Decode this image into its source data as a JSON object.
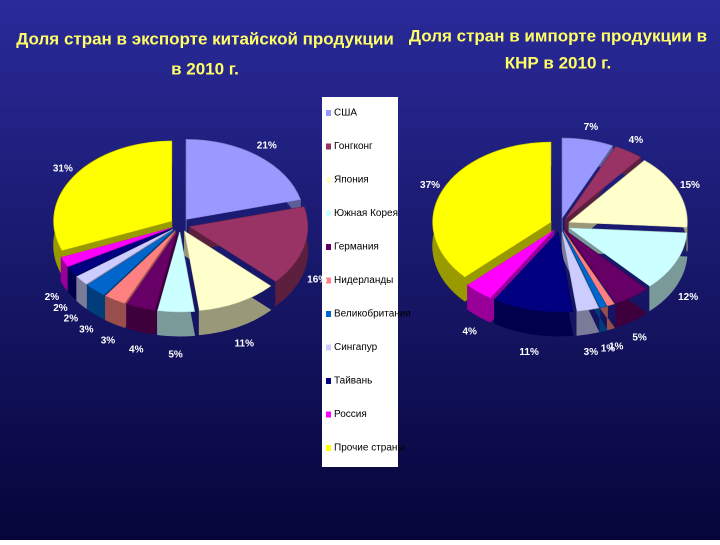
{
  "legend": {
    "categories": [
      "США",
      "Гонгконг",
      "Япония",
      "Южная Корея",
      "Германия",
      "Нидерланды",
      "Великобритания",
      "Сингапур",
      "Тайвань",
      "Россия",
      "Прочие страны"
    ],
    "colors": [
      "#9999ff",
      "#993366",
      "#ffffcc",
      "#ccffff",
      "#660066",
      "#ff8080",
      "#0066cc",
      "#ccccff",
      "#000080",
      "#ff00ff",
      "#ffff00"
    ]
  },
  "chart_data": [
    {
      "type": "pie",
      "title": [
        "Доля стран в экспорте китайской продукции",
        "в 2010 г."
      ],
      "values": [
        21,
        16,
        11,
        5,
        4,
        3,
        3,
        2,
        2,
        2,
        31
      ],
      "value_labels": [
        "21%",
        "16%",
        "11%",
        "5%",
        "4%",
        "3%",
        "3%",
        "2%",
        "2%",
        "2%",
        "31%"
      ]
    },
    {
      "type": "pie",
      "title": [
        "Доля стран в импорте продукции в",
        "КНР в 2010 г."
      ],
      "values": [
        7,
        4,
        15,
        12,
        5,
        1,
        1,
        3,
        11,
        4,
        37
      ],
      "value_labels": [
        "7%",
        "4%",
        "15%",
        "12%",
        "5%",
        "1%",
        "1%",
        "3%",
        "11%",
        "4%",
        "37%"
      ]
    }
  ]
}
